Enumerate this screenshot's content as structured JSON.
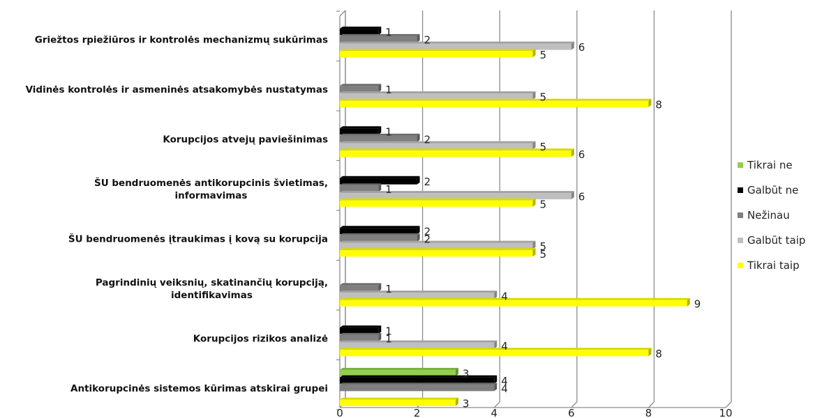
{
  "chart_data": {
    "type": "bar",
    "orientation": "horizontal",
    "title": "",
    "xlabel": "",
    "ylabel": "",
    "xlim": [
      0,
      10
    ],
    "x_ticks": [
      "0",
      "2",
      "4",
      "6",
      "8",
      "10"
    ],
    "grid": "vertical",
    "legend_position": "right",
    "categories": [
      "Griežtos rpiežiūros ir kontrolės mechanizmų sukūrimas",
      "Vidinės kontrolės ir asmeninės atsakomybės nustatymas",
      "Korupcijos atvejų paviešinimas",
      "ŠU bendruomenės antikorupcinis švietimas, informavimas",
      "ŠU bendruomenės įtraukimas į kovą su korupcija",
      "Pagrindinių veiksnių, skatinančių korupciją, identifikavimas",
      "Korupcijos rizikos analizė",
      "Antikorupcinės sistemos kūrimas atskirai grupei"
    ],
    "category_lines": [
      [
        "Griežtos rpiežiūros ir kontrolės mechanizmų sukūrimas"
      ],
      [
        "Vidinės kontrolės ir asmeninės atsakomybės nustatymas"
      ],
      [
        "Korupcijos atvejų paviešinimas"
      ],
      [
        "ŠU bendruomenės antikorupcinis švietimas,",
        "informavimas"
      ],
      [
        "ŠU bendruomenės įtraukimas į kovą su korupcija"
      ],
      [
        "Pagrindinių veiksnių, skatinančių korupciją,",
        "identifikavimas"
      ],
      [
        "Korupcijos rizikos analizė"
      ],
      [
        "Antikorupcinės sistemos kūrimas atskirai grupei"
      ]
    ],
    "series": [
      {
        "name": "Tikrai ne",
        "color": "#92d050",
        "values": [
          null,
          null,
          null,
          null,
          null,
          null,
          null,
          3
        ]
      },
      {
        "name": "Galbūt ne",
        "color": "#000000",
        "values": [
          1,
          null,
          1,
          2,
          2,
          null,
          1,
          4
        ]
      },
      {
        "name": "Nežinau",
        "color": "#7f7f7f",
        "values": [
          2,
          1,
          2,
          1,
          2,
          1,
          1,
          4
        ]
      },
      {
        "name": "Galbūt taip",
        "color": "#bfbfbf",
        "values": [
          6,
          5,
          5,
          6,
          5,
          4,
          4,
          null
        ]
      },
      {
        "name": "Tikrai taip",
        "color": "#ffff00",
        "values": [
          5,
          8,
          6,
          5,
          5,
          9,
          8,
          3
        ]
      }
    ]
  }
}
